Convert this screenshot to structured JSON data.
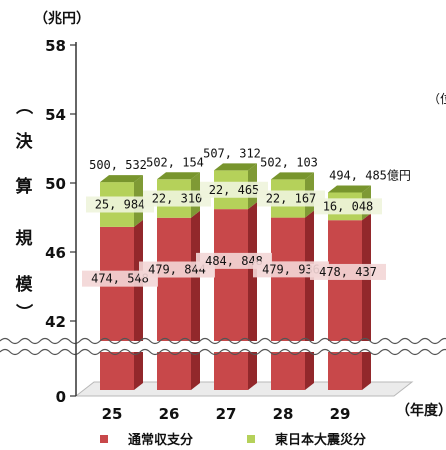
{
  "chart_data": {
    "type": "bar",
    "unit_label": "（兆円）",
    "ylabel_chars": [
      "（",
      "決",
      "算",
      "規",
      "模",
      "）"
    ],
    "xlabel": "（年度）",
    "categories": [
      "25",
      "26",
      "27",
      "28",
      "29"
    ],
    "y_ticks": [
      0,
      42,
      46,
      50,
      54,
      58
    ],
    "axis_break": true,
    "series": [
      {
        "name": "通常収支分",
        "values": [
          474548,
          479844,
          484848,
          479936,
          478437
        ],
        "labels": [
          "474, 548",
          "479, 844",
          "484, 848",
          "479, 936",
          "478, 437"
        ],
        "color": "#c8484a"
      },
      {
        "name": "東日本大震災分",
        "values": [
          25984,
          22310,
          22465,
          22167,
          16048
        ],
        "labels": [
          "25, 984",
          "22, 310",
          "22, 465",
          "22, 167",
          "16, 048"
        ],
        "color": "#b5d15a"
      }
    ],
    "totals": [
      500532,
      502154,
      507312,
      502103,
      494485
    ],
    "total_labels": [
      "500, 532",
      "502, 154",
      "507, 312",
      "502, 103",
      "494, 485億円"
    ],
    "right_edge_fragment": "（位",
    "legend_position": "bottom",
    "grid": false
  }
}
